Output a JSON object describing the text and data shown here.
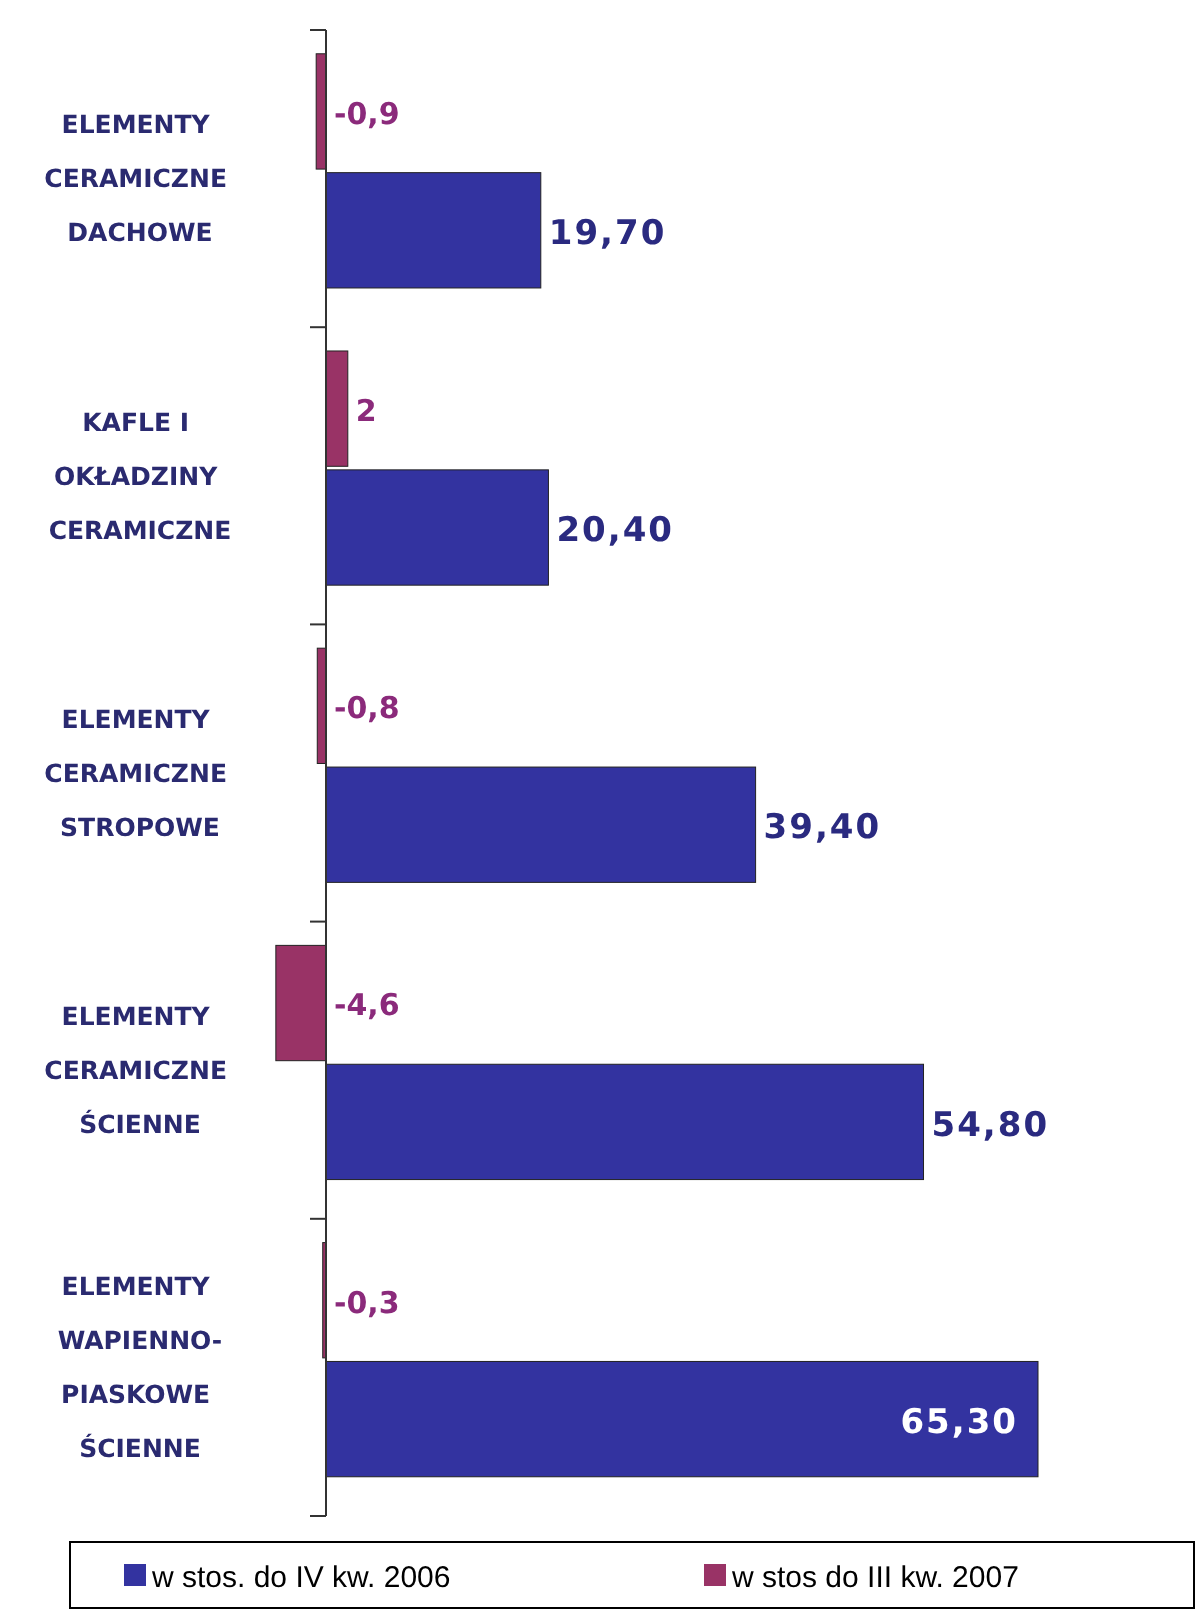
{
  "chart_data": {
    "type": "bar",
    "orientation": "horizontal",
    "categories": [
      "ELEMENTY CERAMICZNE DACHOWE",
      "KAFLE I OKŁADZINY CERAMICZNE",
      "ELEMENTY CERAMICZNE STROPOWE",
      "ELEMENTY CERAMICZNE ŚCIENNE",
      "ELEMENTY WAPIENNO-PIASKOWE ŚCIENNE"
    ],
    "series": [
      {
        "name": "w stos. do IV kw. 2006",
        "color": "#3333a0",
        "values": [
          19.7,
          20.4,
          39.4,
          54.8,
          65.3
        ],
        "value_labels": [
          "19,70",
          "20,40",
          "39,40",
          "54,80",
          "65,30"
        ]
      },
      {
        "name": "w stos do III kw. 2007",
        "color": "#993366",
        "values": [
          -0.9,
          2,
          -0.8,
          -4.6,
          -0.3
        ],
        "value_labels": [
          "-0,9",
          "2",
          "-0,8",
          "-4,6",
          "-0,3"
        ]
      }
    ],
    "legend": "bottom"
  }
}
